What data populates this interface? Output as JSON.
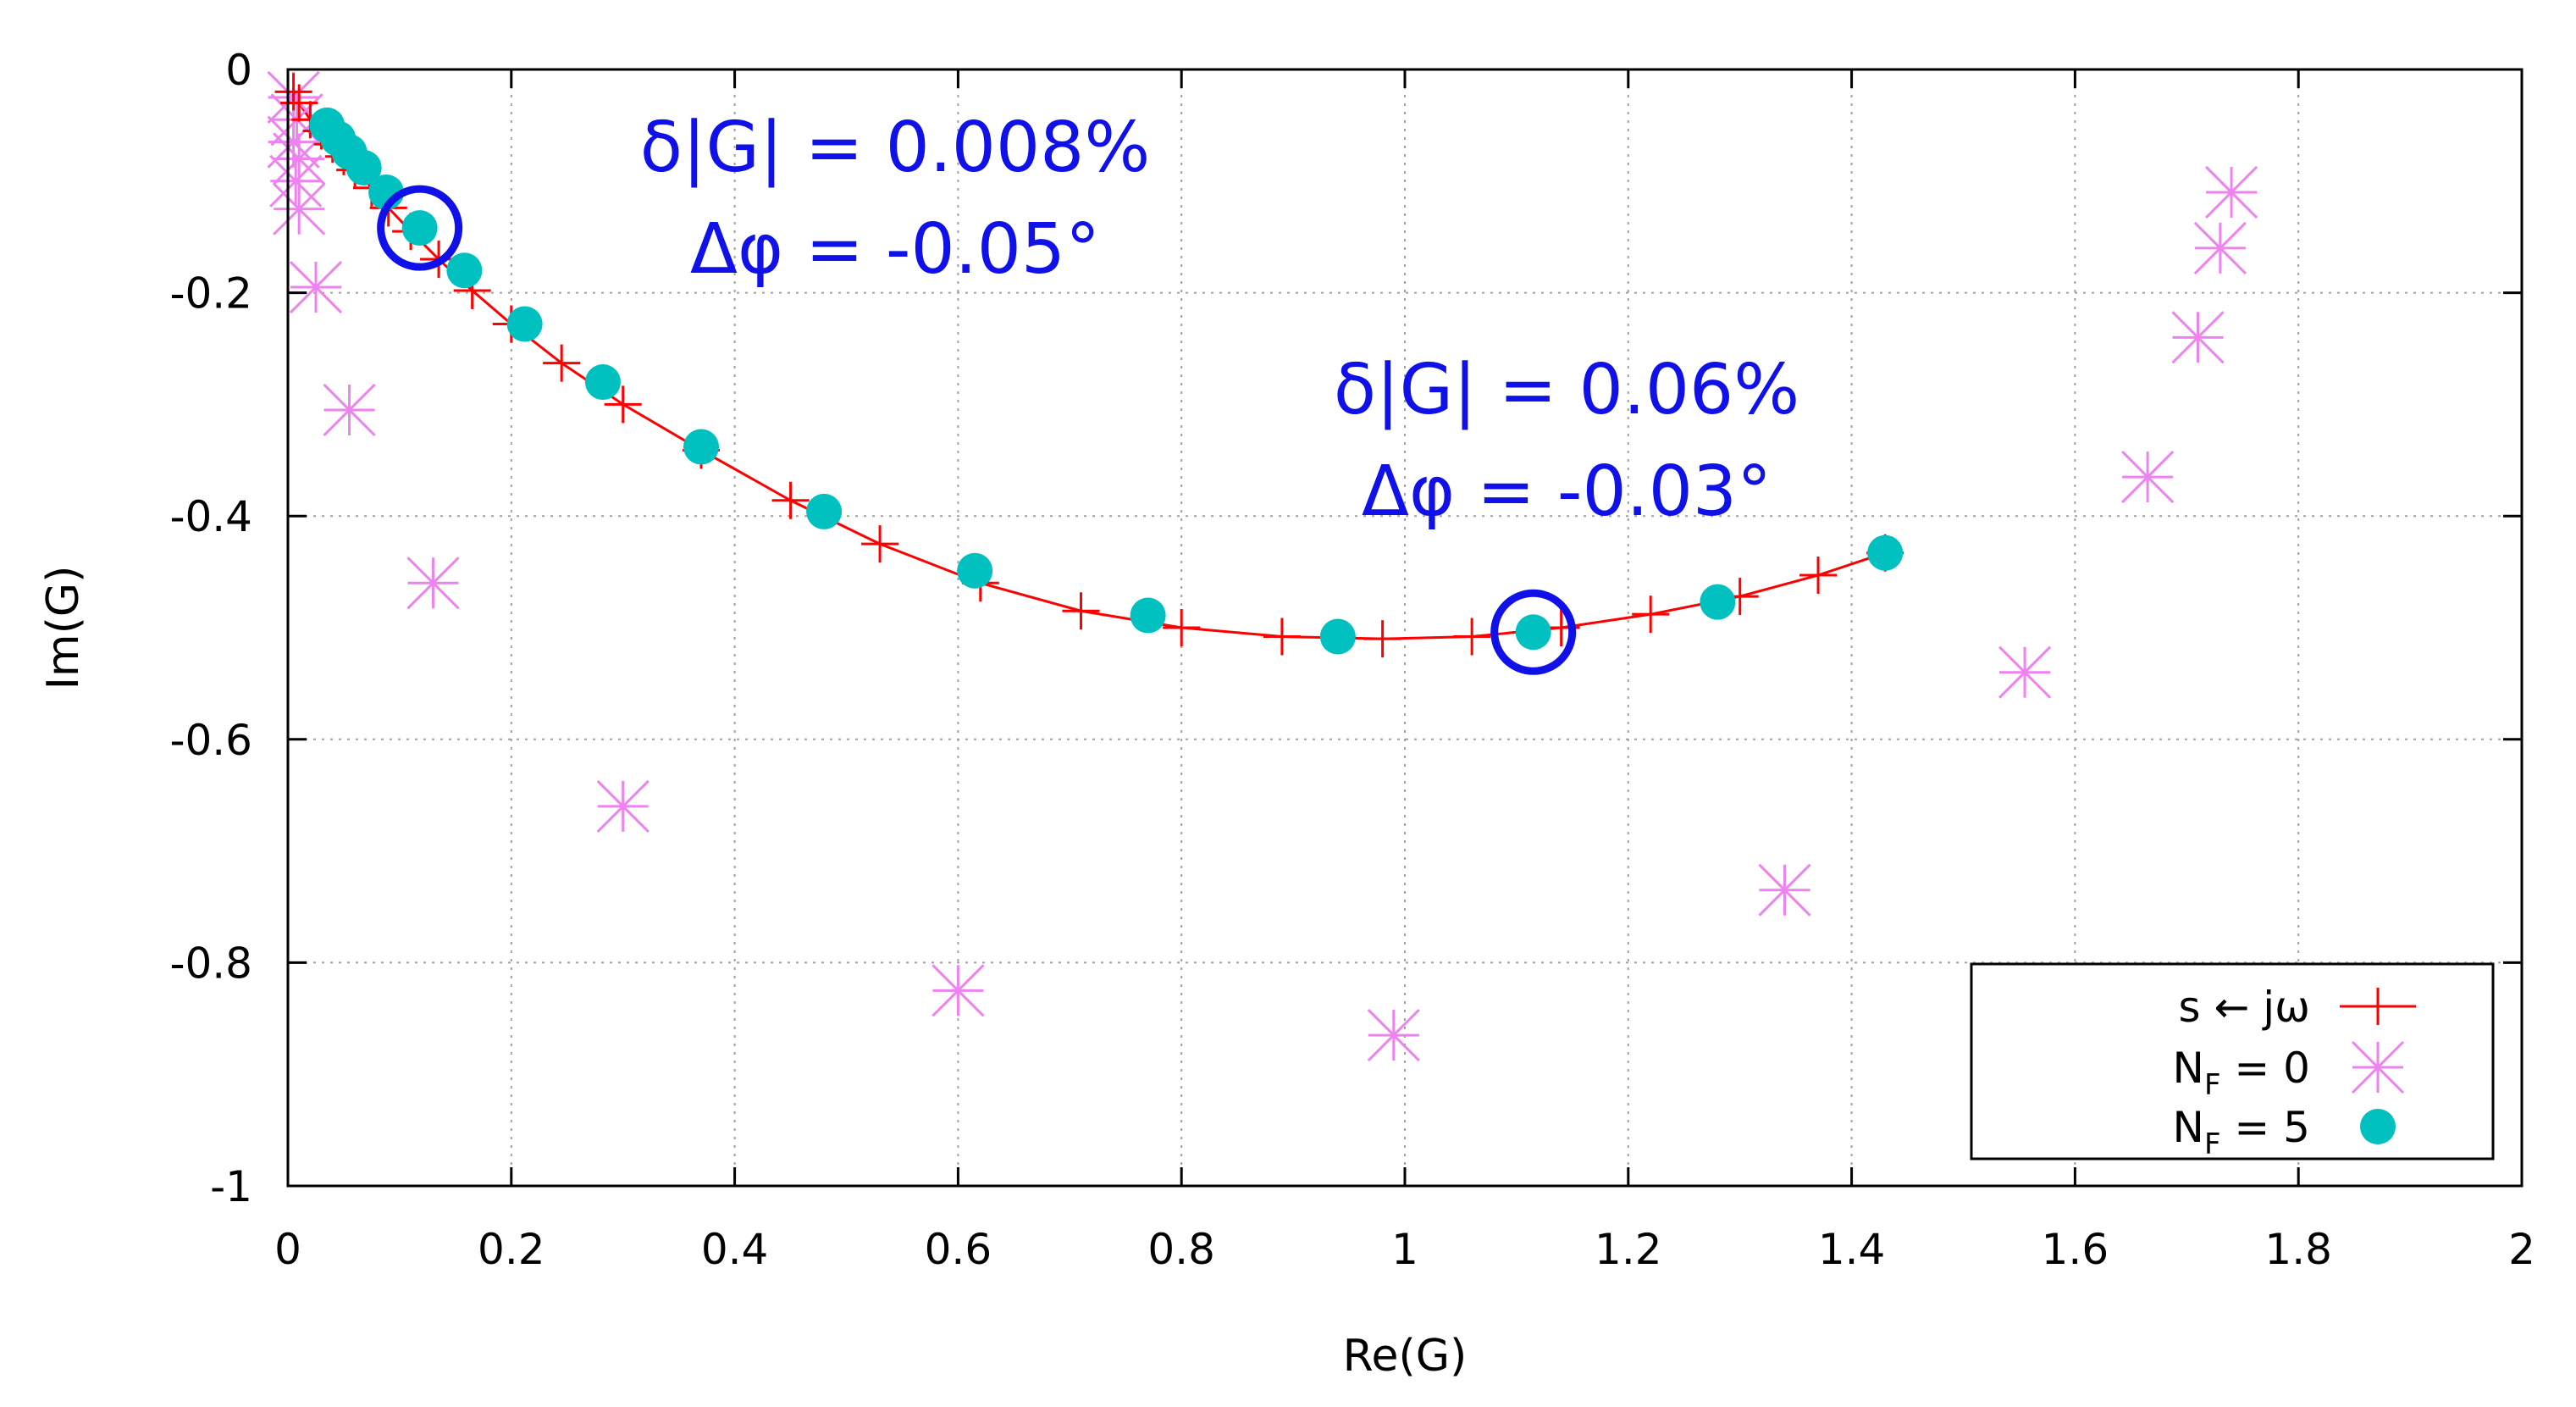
{
  "chart_data": {
    "type": "scatter",
    "xlabel": "Re(G)",
    "ylabel": "Im(G)",
    "xlim": [
      0,
      2
    ],
    "ylim": [
      -1,
      0
    ],
    "xticks": [
      "0",
      "0.2",
      "0.4",
      "0.6",
      "0.8",
      "1",
      "1.2",
      "1.4",
      "1.6",
      "1.8",
      "2"
    ],
    "yticks": [
      "0",
      "-0.2",
      "-0.4",
      "-0.6",
      "-0.8",
      "-1"
    ],
    "grid": true,
    "legend_position": "bottom-right",
    "series": [
      {
        "name": "s ← jω",
        "marker": "plus-with-line",
        "color": "#ff0000",
        "x": [
          0.005,
          0.01,
          0.02,
          0.03,
          0.04,
          0.05,
          0.06,
          0.075,
          0.09,
          0.11,
          0.135,
          0.165,
          0.2,
          0.245,
          0.3,
          0.37,
          0.45,
          0.53,
          0.62,
          0.71,
          0.8,
          0.89,
          0.98,
          1.06,
          1.14,
          1.22,
          1.3,
          1.37,
          1.43
        ],
        "y": [
          -0.02,
          -0.03,
          -0.045,
          -0.055,
          -0.067,
          -0.078,
          -0.09,
          -0.106,
          -0.124,
          -0.145,
          -0.17,
          -0.198,
          -0.228,
          -0.263,
          -0.3,
          -0.341,
          -0.386,
          -0.425,
          -0.46,
          -0.485,
          -0.5,
          -0.508,
          -0.51,
          -0.508,
          -0.5,
          -0.488,
          -0.472,
          -0.453,
          -0.433
        ]
      },
      {
        "name": "N_F = 0",
        "marker": "asterisk",
        "color": "#ee82ee",
        "x": [
          0.005,
          0.008,
          0.005,
          0.01,
          0.007,
          0.01,
          0.025,
          0.055,
          0.13,
          0.3,
          0.6,
          0.99,
          1.34,
          1.555,
          1.665,
          1.71,
          1.73,
          1.74
        ],
        "y": [
          -0.025,
          -0.045,
          -0.065,
          -0.08,
          -0.1,
          -0.125,
          -0.195,
          -0.305,
          -0.46,
          -0.66,
          -0.825,
          -0.865,
          -0.735,
          -0.54,
          -0.365,
          -0.24,
          -0.16,
          -0.11
        ]
      },
      {
        "name": "N_F = 5",
        "marker": "filled-circle",
        "color": "#00c0c0",
        "x": [
          0.035,
          0.045,
          0.055,
          0.068,
          0.088,
          0.118,
          0.158,
          0.212,
          0.282,
          0.37,
          0.48,
          0.615,
          0.77,
          0.94,
          1.115,
          1.28,
          1.43
        ],
        "y": [
          -0.05,
          -0.062,
          -0.074,
          -0.088,
          -0.11,
          -0.142,
          -0.18,
          -0.228,
          -0.28,
          -0.338,
          -0.396,
          -0.449,
          -0.489,
          -0.508,
          -0.504,
          -0.477,
          -0.433
        ]
      }
    ],
    "annotations": [
      {
        "line1": "δ|G| = 0.008%",
        "line2": "Δφ = -0.05°",
        "x": 0.118,
        "y": -0.142
      },
      {
        "line1": "δ|G| = 0.06%",
        "line2": "Δφ = -0.03°",
        "x": 1.115,
        "y": -0.504
      }
    ],
    "legend": [
      {
        "label": "s ← jω"
      },
      {
        "label_main": "N",
        "label_sub": "F",
        "label_rest": " = 0"
      },
      {
        "label_main": "N",
        "label_sub": "F",
        "label_rest": " = 5"
      }
    ],
    "colors": {
      "axes": "#000000",
      "grid": "#a0a0a0",
      "annotation": "#1010e8",
      "highlight_circle": "#1010e8"
    }
  }
}
